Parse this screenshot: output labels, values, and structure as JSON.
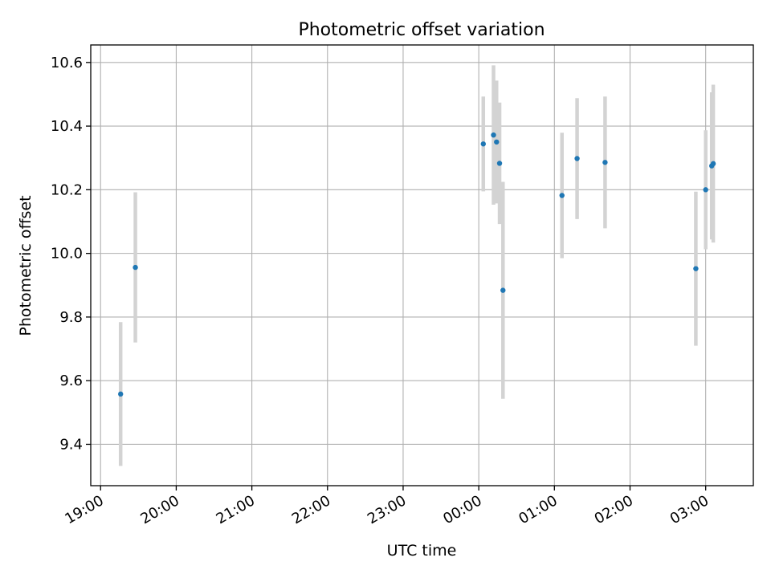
{
  "chart_data": {
    "type": "scatter",
    "title": "Photometric offset variation",
    "xlabel": "UTC time",
    "ylabel": "Photometric offset",
    "grid": true,
    "x_unit": "hours since 19:00 UTC",
    "xlim": [
      -0.13,
      8.63
    ],
    "ylim": [
      9.27,
      10.655
    ],
    "x_ticks": [
      {
        "value": 0,
        "label": "19:00"
      },
      {
        "value": 1,
        "label": "20:00"
      },
      {
        "value": 2,
        "label": "21:00"
      },
      {
        "value": 3,
        "label": "22:00"
      },
      {
        "value": 4,
        "label": "23:00"
      },
      {
        "value": 5,
        "label": "00:00"
      },
      {
        "value": 6,
        "label": "01:00"
      },
      {
        "value": 7,
        "label": "02:00"
      },
      {
        "value": 8,
        "label": "03:00"
      }
    ],
    "y_ticks": [
      {
        "value": 9.4,
        "label": "9.4"
      },
      {
        "value": 9.6,
        "label": "9.6"
      },
      {
        "value": 9.8,
        "label": "9.8"
      },
      {
        "value": 10.0,
        "label": "10.0"
      },
      {
        "value": 10.2,
        "label": "10.2"
      },
      {
        "value": 10.4,
        "label": "10.4"
      },
      {
        "value": 10.6,
        "label": "10.6"
      }
    ],
    "series": [
      {
        "name": "offset",
        "point_color": "#1f77b4",
        "error_color": "#d3d3d3",
        "points": [
          {
            "x": 0.265,
            "y": 9.558,
            "err": 0.226
          },
          {
            "x": 0.46,
            "y": 9.956,
            "err": 0.236
          },
          {
            "x": 5.06,
            "y": 10.344,
            "err": 0.149
          },
          {
            "x": 5.195,
            "y": 10.372,
            "err": 0.219
          },
          {
            "x": 5.235,
            "y": 10.35,
            "err": 0.193
          },
          {
            "x": 5.275,
            "y": 10.283,
            "err": 0.191
          },
          {
            "x": 5.32,
            "y": 9.884,
            "err": 0.341
          },
          {
            "x": 6.1,
            "y": 10.182,
            "err": 0.197
          },
          {
            "x": 6.3,
            "y": 10.298,
            "err": 0.19
          },
          {
            "x": 6.67,
            "y": 10.286,
            "err": 0.207
          },
          {
            "x": 7.87,
            "y": 9.952,
            "err": 0.242
          },
          {
            "x": 8.0,
            "y": 10.2,
            "err": 0.187
          },
          {
            "x": 8.08,
            "y": 10.275,
            "err": 0.231
          },
          {
            "x": 8.1,
            "y": 10.282,
            "err": 0.248
          }
        ]
      }
    ]
  }
}
